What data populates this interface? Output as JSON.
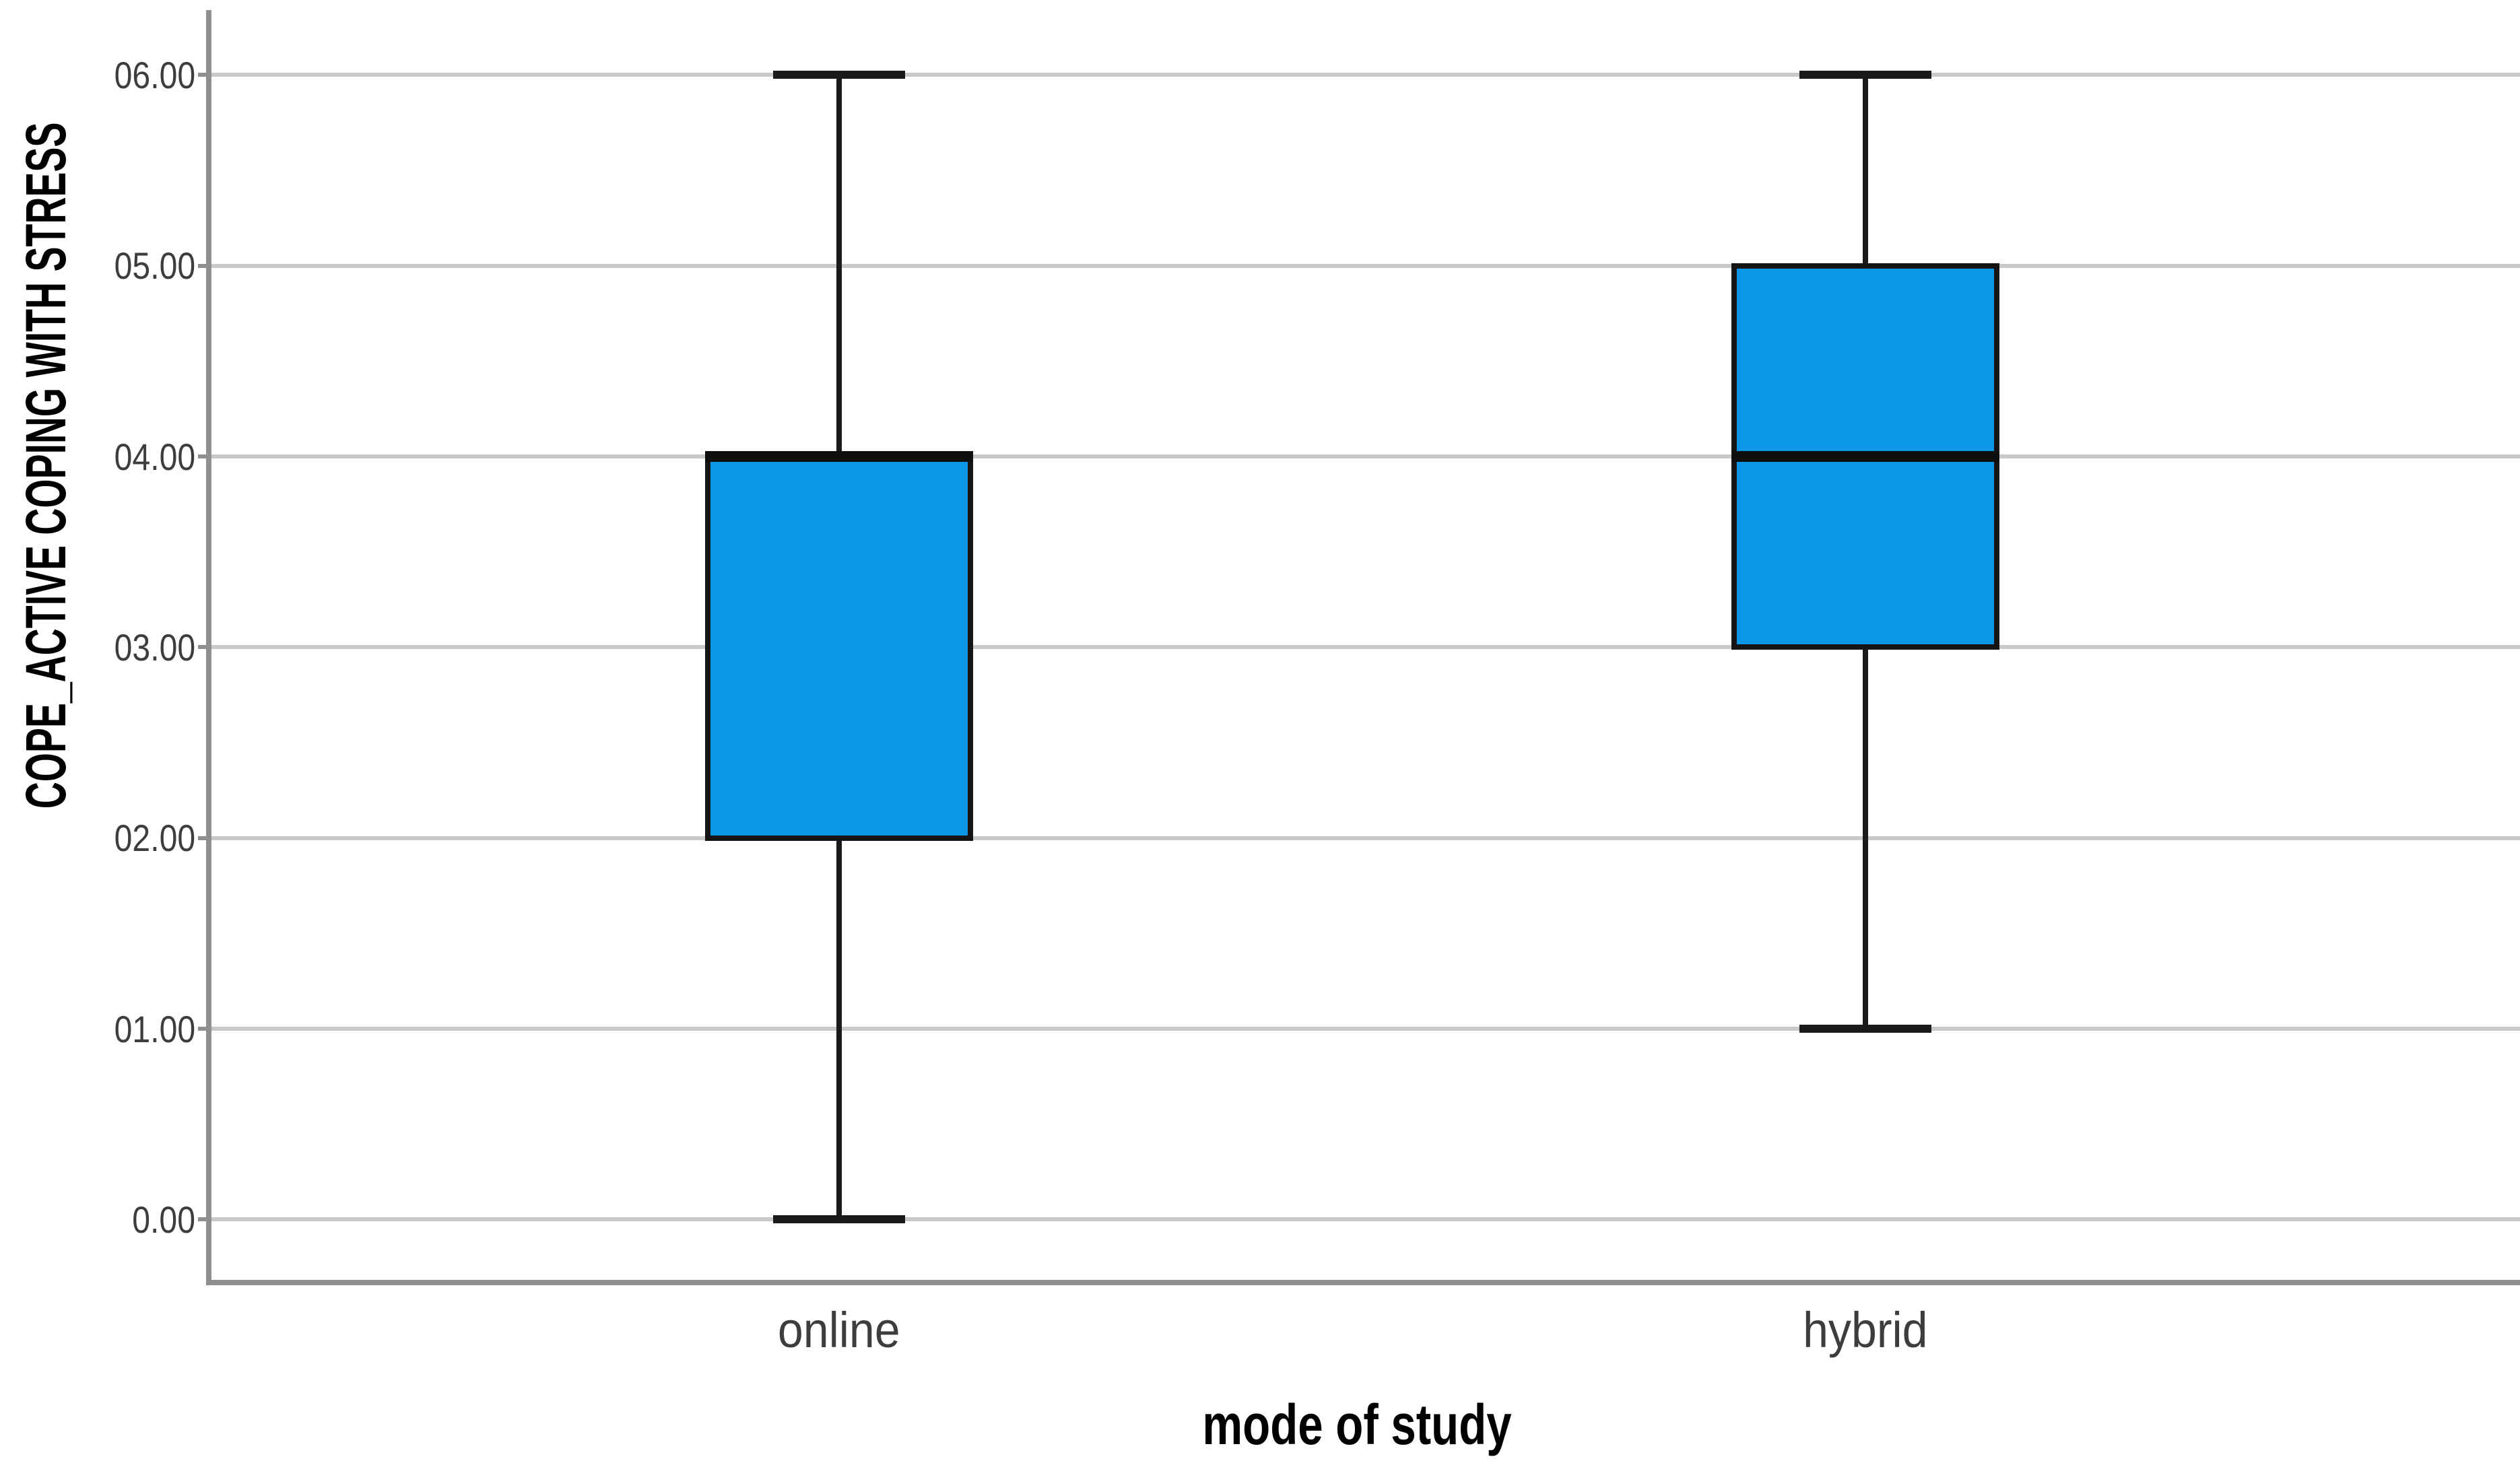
{
  "chart_data": {
    "type": "boxplot",
    "title": "",
    "xlabel": "mode of study",
    "ylabel": "COPE_ACTIVE COPING WITH STRESS",
    "categories": [
      "online",
      "hybrid"
    ],
    "y_ticks": [
      {
        "value": 0,
        "label": "0.00"
      },
      {
        "value": 1,
        "label": "01.00"
      },
      {
        "value": 2,
        "label": "02.00"
      },
      {
        "value": 3,
        "label": "03.00"
      },
      {
        "value": 4,
        "label": "04.00"
      },
      {
        "value": 5,
        "label": "05.00"
      },
      {
        "value": 6,
        "label": "06.00"
      }
    ],
    "ylim": [
      -0.33,
      6.34
    ],
    "grid": true,
    "legend": false,
    "boxes": [
      {
        "category": "online",
        "whisker_low": 0.0,
        "q1": 2.0,
        "median": 4.0,
        "q3": 4.0,
        "whisker_high": 6.0,
        "outliers": []
      },
      {
        "category": "hybrid",
        "whisker_low": 1.0,
        "q1": 3.0,
        "median": 4.0,
        "q3": 5.0,
        "whisker_high": 6.0,
        "outliers": []
      }
    ],
    "colors": {
      "box_fill": "#0a97e6",
      "box_border": "#151515",
      "median_line": "#0f0f0f",
      "whisker": "#1a1a1a",
      "gridline": "#c9c9c9",
      "axis_line": "#8f8f8f",
      "tick_text": "#3d3d3d",
      "title_text": "#000000",
      "background": "#ffffff"
    }
  }
}
